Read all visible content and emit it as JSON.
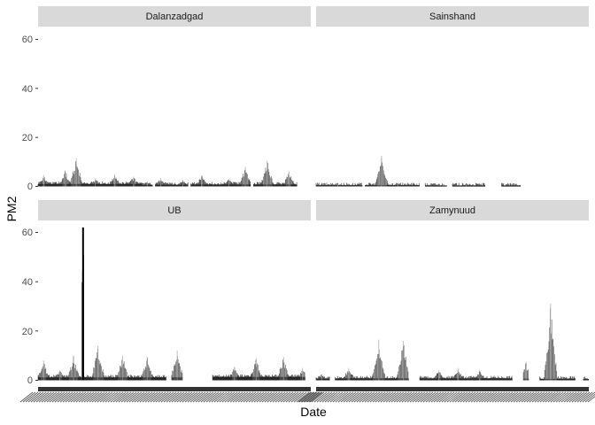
{
  "chart_data": {
    "type": "bar",
    "title": "",
    "xlabel": "Date",
    "ylabel": "PM2",
    "ylim": [
      0,
      62
    ],
    "y_ticks": [
      0,
      20,
      40,
      60
    ],
    "grid": false,
    "facets": [
      {
        "name": "Dalanzadgad",
        "segments": [
          {
            "from": 0.0,
            "to": 0.38,
            "baseline": 0.8,
            "peaks": [
              [
                0.02,
                4.5
              ],
              [
                0.1,
                6.5
              ],
              [
                0.14,
                11.5
              ],
              [
                0.21,
                3.2
              ],
              [
                0.28,
                5.0
              ],
              [
                0.35,
                4.0
              ]
            ]
          },
          {
            "from": 0.38,
            "to": 0.42,
            "baseline": 0.4,
            "peaks": [
              [
                0.4,
                2.0
              ]
            ]
          },
          {
            "from": 0.43,
            "to": 0.55,
            "baseline": 0.5,
            "peaks": [
              [
                0.45,
                3.5
              ],
              [
                0.53,
                2.5
              ]
            ]
          },
          {
            "from": 0.56,
            "to": 0.78,
            "baseline": 0.6,
            "peaks": [
              [
                0.6,
                4.5
              ],
              [
                0.7,
                3.0
              ],
              [
                0.76,
                8.0
              ]
            ]
          },
          {
            "from": 0.79,
            "to": 0.95,
            "baseline": 0.6,
            "peaks": [
              [
                0.84,
                10.5
              ],
              [
                0.92,
                6.0
              ]
            ]
          }
        ]
      },
      {
        "name": "Sainshand",
        "segments": [
          {
            "from": 0.0,
            "to": 0.17,
            "baseline": 0.3,
            "peaks": [
              [
                0.08,
                1.0
              ]
            ]
          },
          {
            "from": 0.18,
            "to": 0.38,
            "baseline": 0.3,
            "peaks": [
              [
                0.24,
                12.5
              ],
              [
                0.3,
                1.5
              ]
            ]
          },
          {
            "from": 0.4,
            "to": 0.48,
            "baseline": 0.2,
            "peaks": []
          },
          {
            "from": 0.5,
            "to": 0.62,
            "baseline": 0.2,
            "peaks": [
              [
                0.55,
                1.0
              ]
            ]
          },
          {
            "from": 0.68,
            "to": 0.75,
            "baseline": 0.2,
            "peaks": []
          }
        ]
      },
      {
        "name": "UB",
        "segments": [
          {
            "from": 0.0,
            "to": 0.16,
            "baseline": 1.0,
            "peaks": [
              [
                0.02,
                8.0
              ],
              [
                0.08,
                4.0
              ],
              [
                0.13,
                10.0
              ]
            ]
          },
          {
            "from": 0.16,
            "to": 0.17,
            "baseline": 1.0,
            "peaks": [
              [
                0.165,
                62.0
              ]
            ]
          },
          {
            "from": 0.17,
            "to": 0.47,
            "baseline": 1.0,
            "peaks": [
              [
                0.22,
                14.0
              ],
              [
                0.31,
                10.0
              ],
              [
                0.4,
                9.5
              ]
            ]
          },
          {
            "from": 0.49,
            "to": 0.53,
            "baseline": 1.0,
            "peaks": [
              [
                0.51,
                12.0
              ]
            ]
          },
          {
            "from": 0.64,
            "to": 0.98,
            "baseline": 1.2,
            "peaks": [
              [
                0.72,
                5.5
              ],
              [
                0.8,
                9.0
              ],
              [
                0.9,
                9.5
              ],
              [
                0.97,
                5.0
              ]
            ]
          }
        ]
      },
      {
        "name": "Zamynuud",
        "segments": [
          {
            "from": 0.0,
            "to": 0.05,
            "baseline": 0.5,
            "peaks": [
              [
                0.02,
                2.5
              ]
            ]
          },
          {
            "from": 0.07,
            "to": 0.34,
            "baseline": 0.6,
            "peaks": [
              [
                0.12,
                5.0
              ],
              [
                0.23,
                16.5
              ],
              [
                0.32,
                16.0
              ]
            ]
          },
          {
            "from": 0.38,
            "to": 0.72,
            "baseline": 0.6,
            "peaks": [
              [
                0.45,
                4.0
              ],
              [
                0.52,
                5.0
              ],
              [
                0.6,
                4.0
              ]
            ]
          },
          {
            "from": 0.76,
            "to": 0.78,
            "baseline": 0.5,
            "peaks": [
              [
                0.77,
                7.5
              ]
            ]
          },
          {
            "from": 0.82,
            "to": 0.95,
            "baseline": 0.4,
            "peaks": [
              [
                0.86,
                31.0
              ]
            ]
          },
          {
            "from": 0.98,
            "to": 1.0,
            "baseline": 0.3,
            "peaks": []
          }
        ]
      }
    ]
  }
}
